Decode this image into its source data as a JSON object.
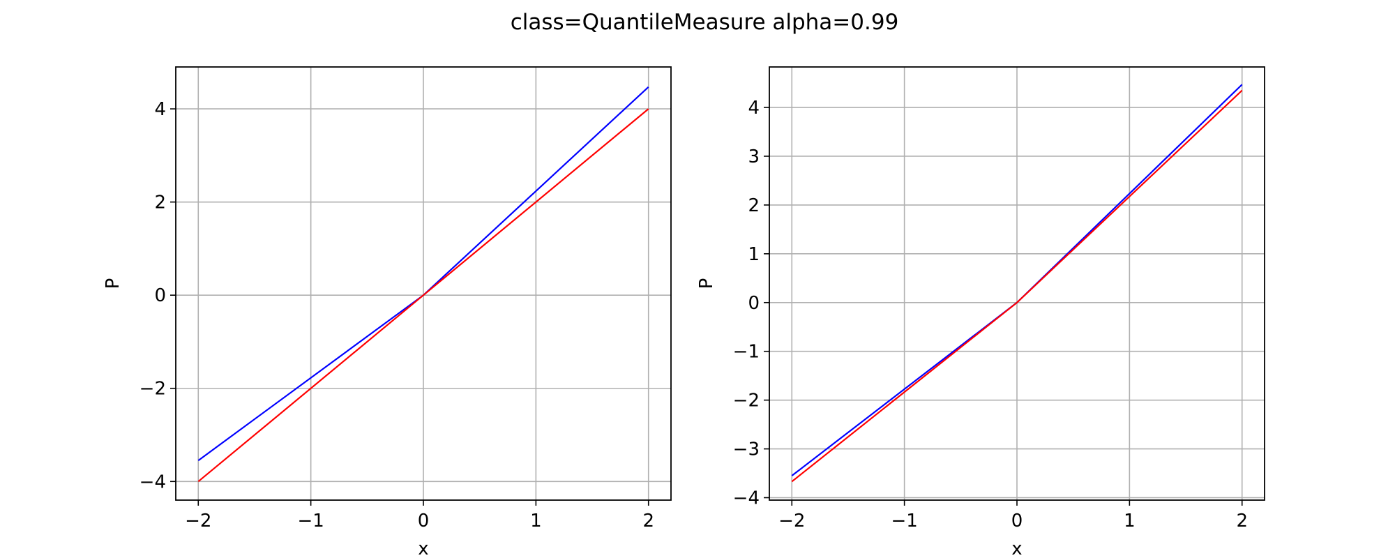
{
  "figure": {
    "title": "class=QuantileMeasure alpha=0.99"
  },
  "chart_data": [
    {
      "type": "line",
      "title": "",
      "xlabel": "x",
      "ylabel": "P",
      "xlim": [
        -2.2,
        2.2
      ],
      "ylim": [
        -4.4,
        4.9
      ],
      "xticks": [
        -2,
        -1,
        0,
        1,
        2
      ],
      "xtick_labels": [
        "−2",
        "−1",
        "0",
        "1",
        "2"
      ],
      "yticks": [
        -4,
        -2,
        0,
        2,
        4
      ],
      "ytick_labels": [
        "−4",
        "−2",
        "0",
        "2",
        "4"
      ],
      "grid": true,
      "series": [
        {
          "color": "#0000ff",
          "x": [
            -2,
            0,
            2
          ],
          "y": [
            -3.55,
            0,
            4.47
          ]
        },
        {
          "color": "#ff0000",
          "x": [
            -2,
            0,
            2
          ],
          "y": [
            -4.0,
            0,
            4.0
          ]
        }
      ]
    },
    {
      "type": "line",
      "title": "",
      "xlabel": "x",
      "ylabel": "P",
      "xlim": [
        -2.2,
        2.2
      ],
      "ylim": [
        -4.05,
        4.83
      ],
      "xticks": [
        -2,
        -1,
        0,
        1,
        2
      ],
      "xtick_labels": [
        "−2",
        "−1",
        "0",
        "1",
        "2"
      ],
      "yticks": [
        -4,
        -3,
        -2,
        -1,
        0,
        1,
        2,
        3,
        4
      ],
      "ytick_labels": [
        "−4",
        "−3",
        "−2",
        "−1",
        "0",
        "1",
        "2",
        "3",
        "4"
      ],
      "grid": true,
      "series": [
        {
          "color": "#0000ff",
          "x": [
            -2,
            0,
            2
          ],
          "y": [
            -3.55,
            0,
            4.47
          ]
        },
        {
          "color": "#ff0000",
          "x": [
            -2,
            0,
            2
          ],
          "y": [
            -3.67,
            0,
            4.35
          ]
        }
      ]
    }
  ]
}
